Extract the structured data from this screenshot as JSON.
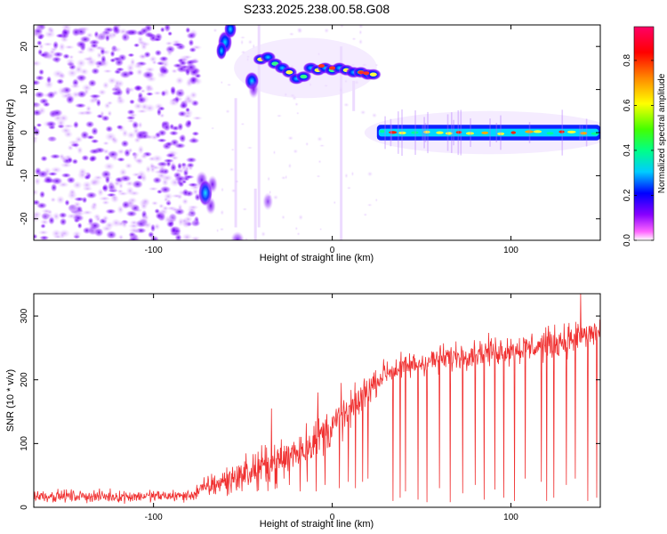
{
  "title": "S233.2025.238.00.58.G08",
  "chart_data": [
    {
      "type": "heatmap",
      "name": "spectrogram",
      "xlabel": "Height of straight line (km)",
      "ylabel": "Frequency (Hz)",
      "xlim": [
        -167,
        150
      ],
      "ylim": [
        -25,
        25
      ],
      "xticks": [
        -100,
        0,
        100
      ],
      "xtick_labels": [
        "-100",
        "0",
        "100"
      ],
      "yticks": [
        -20,
        -10,
        0,
        10,
        20
      ],
      "ytick_labels": [
        "-20",
        "-10",
        "0",
        "10",
        "20"
      ],
      "colorbar": {
        "label": "Normalized spectral amplitude",
        "range": [
          0,
          0.95
        ],
        "ticks": [
          0.0,
          0.2,
          0.4,
          0.6,
          0.8
        ],
        "tick_labels": [
          "0.0",
          "0.2",
          "0.4",
          "0.6",
          "0.8"
        ],
        "colors": [
          "#ffffff",
          "#ff66ff",
          "#8800ff",
          "#0000ff",
          "#00ccff",
          "#00ff88",
          "#44ff00",
          "#ffff00",
          "#ff8800",
          "#ff0000",
          "#ff0066"
        ]
      },
      "features": [
        {
          "name": "scattered noise",
          "x_range": [
            -167,
            -75
          ],
          "frequency_range": [
            -25,
            25
          ],
          "amplitude": 0.1
        },
        {
          "name": "band 1",
          "x_range": [
            -63,
            -52
          ],
          "frequency_center": 21,
          "amplitude": 0.25
        },
        {
          "name": "band 2",
          "x_range": [
            -47,
            -43
          ],
          "frequency_center": 12,
          "amplitude": 0.25
        },
        {
          "name": "tone track",
          "x_range": [
            -42,
            25
          ],
          "frequency_center": 15,
          "amplitude": 0.45
        },
        {
          "name": "low band",
          "x_range": [
            -75,
            -63
          ],
          "frequency_center": -12,
          "amplitude": 0.15
        },
        {
          "name": "carrier",
          "x_range": [
            25,
            150
          ],
          "frequency_center": 0,
          "amplitude": 0.7
        }
      ]
    },
    {
      "type": "line",
      "name": "snr",
      "xlabel": "Height of straight line (km)",
      "ylabel": "SNR (10 * v/v)",
      "xlim": [
        -167,
        150
      ],
      "ylim": [
        0,
        335
      ],
      "xticks": [
        -100,
        0,
        100
      ],
      "xtick_labels": [
        "-100",
        "0",
        "100"
      ],
      "yticks": [
        0,
        100,
        200,
        300
      ],
      "ytick_labels": [
        "0",
        "100",
        "200",
        "300"
      ],
      "color": "#f03030",
      "trend": {
        "x": [
          -167,
          -120,
          -80,
          -70,
          -50,
          -30,
          -10,
          10,
          20,
          30,
          50,
          80,
          110,
          130,
          150
        ],
        "y": [
          18,
          17,
          18,
          32,
          52,
          72,
          105,
          150,
          185,
          212,
          227,
          243,
          250,
          262,
          275
        ]
      },
      "noise": {
        "x": [
          -167,
          -120,
          -80,
          -70,
          -50,
          -30,
          -10,
          10,
          20,
          30,
          50,
          80,
          110,
          130,
          150
        ],
        "y": [
          8,
          8,
          8,
          15,
          22,
          28,
          30,
          28,
          20,
          18,
          18,
          18,
          20,
          22,
          22
        ]
      },
      "dips": [
        {
          "x": -63,
          "y": 25
        },
        {
          "x": -58,
          "y": 20
        },
        {
          "x": -52,
          "y": 30
        },
        {
          "x": -47,
          "y": 35
        },
        {
          "x": -42,
          "y": 25
        },
        {
          "x": -37,
          "y": 40
        },
        {
          "x": -31,
          "y": 30
        },
        {
          "x": -27,
          "y": 45
        },
        {
          "x": -24,
          "y": 35
        },
        {
          "x": -18,
          "y": 25
        },
        {
          "x": -14,
          "y": 40
        },
        {
          "x": -9,
          "y": 25
        },
        {
          "x": -4,
          "y": 35
        },
        {
          "x": 4,
          "y": 30
        },
        {
          "x": 9,
          "y": 40
        },
        {
          "x": 13,
          "y": 30
        },
        {
          "x": 17,
          "y": 40
        },
        {
          "x": 20,
          "y": 45
        },
        {
          "x": 34,
          "y": 10
        },
        {
          "x": 38,
          "y": 15
        },
        {
          "x": 41,
          "y": 25
        },
        {
          "x": 48,
          "y": 12
        },
        {
          "x": 53,
          "y": 8
        },
        {
          "x": 60,
          "y": 30
        },
        {
          "x": 66,
          "y": 8
        },
        {
          "x": 73,
          "y": 22
        },
        {
          "x": 80,
          "y": 35
        },
        {
          "x": 85,
          "y": 12
        },
        {
          "x": 91,
          "y": 28
        },
        {
          "x": 96,
          "y": 15
        },
        {
          "x": 102,
          "y": 10
        },
        {
          "x": 108,
          "y": 45
        },
        {
          "x": 117,
          "y": 40
        },
        {
          "x": 120,
          "y": 10
        },
        {
          "x": 124,
          "y": 15
        },
        {
          "x": 131,
          "y": 35
        },
        {
          "x": 136,
          "y": 45
        },
        {
          "x": 143,
          "y": 10
        },
        {
          "x": 148,
          "y": 15
        }
      ],
      "peaks": [
        {
          "x": -34,
          "y": 155
        },
        {
          "x": -24,
          "y": 210
        },
        {
          "x": -8,
          "y": 180
        },
        {
          "x": 5,
          "y": 195
        },
        {
          "x": 139,
          "y": 335
        }
      ]
    }
  ]
}
